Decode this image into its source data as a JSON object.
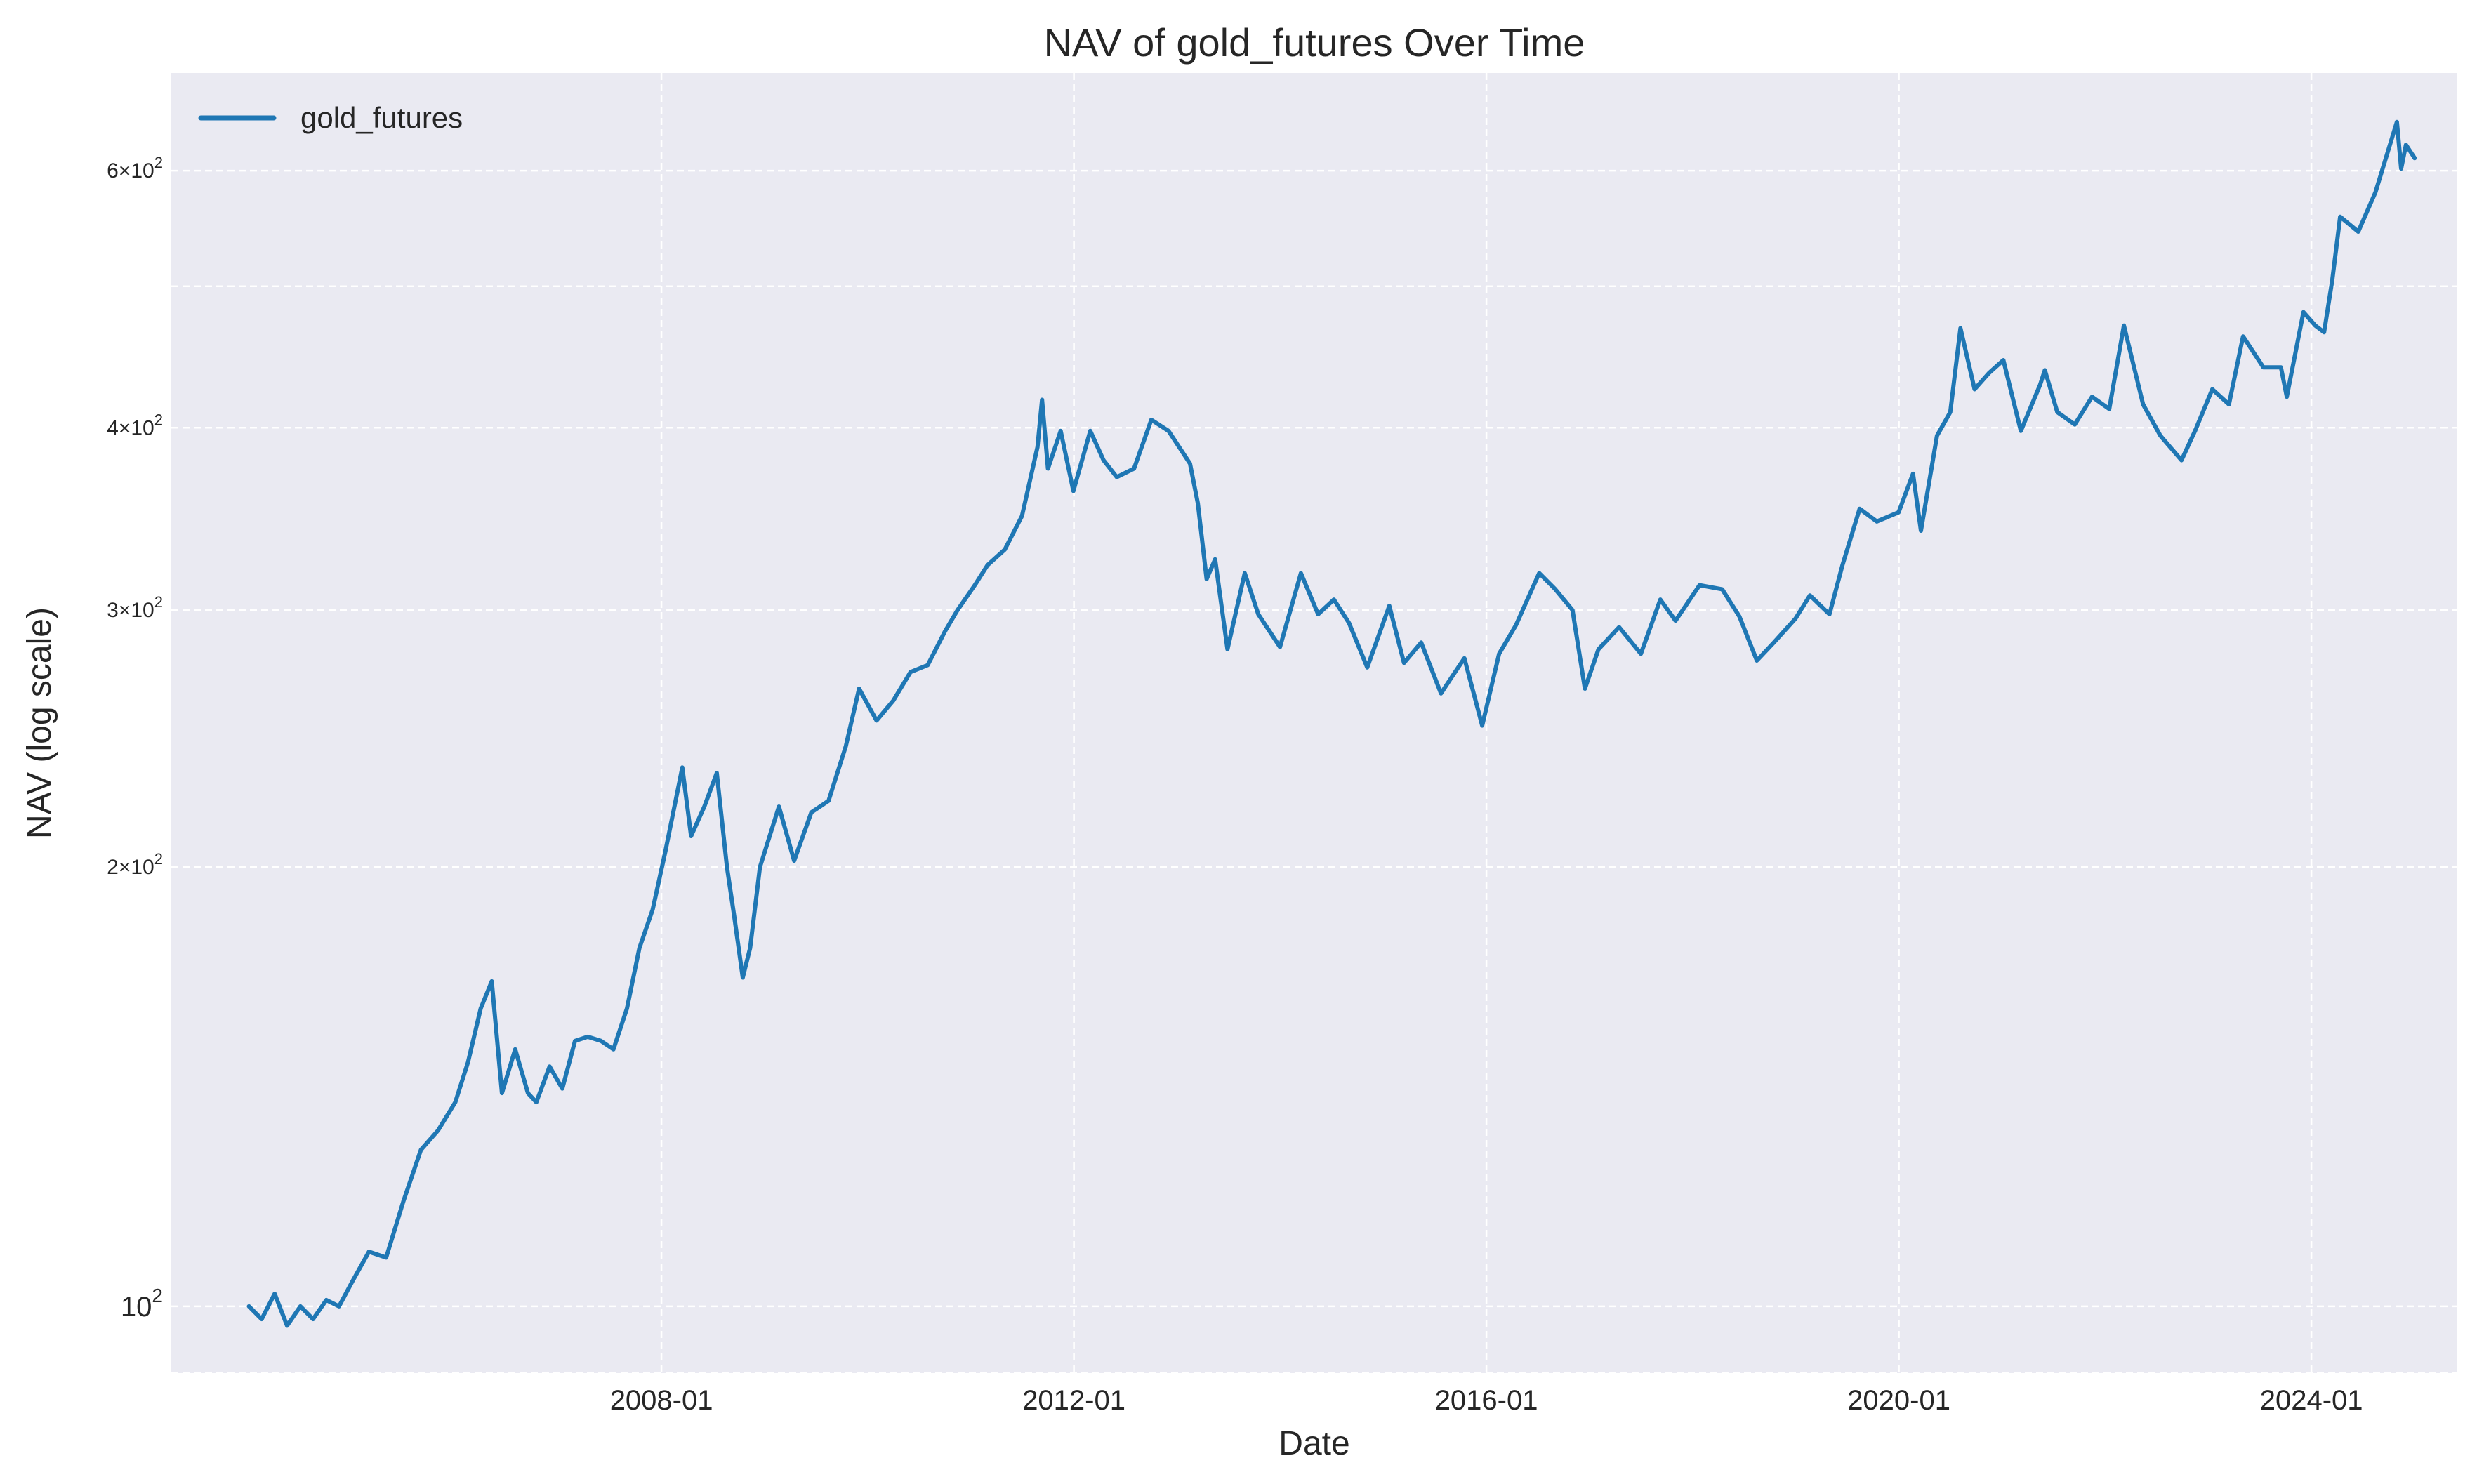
{
  "chart_data": {
    "type": "line",
    "title": "NAV of gold_futures Over Time",
    "xlabel": "Date",
    "ylabel": "NAV (log scale)",
    "yscale": "log",
    "ylim": [
      90,
      700
    ],
    "xlim": [
      "2003-04-01",
      "2025-06-01"
    ],
    "grid": true,
    "legend_position": "top-left",
    "x_ticks": [
      {
        "date": "2008-01-01",
        "label": "2008-01"
      },
      {
        "date": "2012-01-01",
        "label": "2012-01"
      },
      {
        "date": "2016-01-01",
        "label": "2016-01"
      },
      {
        "date": "2020-01-01",
        "label": "2020-01"
      },
      {
        "date": "2024-01-01",
        "label": "2024-01"
      }
    ],
    "y_ticks": [
      {
        "value": 100,
        "base": "10",
        "exp": "2",
        "coef": ""
      },
      {
        "value": 200,
        "base": "10",
        "exp": "2",
        "coef": "2×"
      },
      {
        "value": 300,
        "base": "10",
        "exp": "2",
        "coef": "3×"
      },
      {
        "value": 400,
        "base": "10",
        "exp": "2",
        "coef": "4×"
      },
      {
        "value": 600,
        "base": "10",
        "exp": "2",
        "coef": "6×"
      }
    ],
    "y_minor_grid": [
      500,
      90
    ],
    "series": [
      {
        "name": "gold_futures",
        "color": "#1f77b4",
        "points": [
          [
            "2004-01-01",
            100
          ],
          [
            "2004-02-15",
            98
          ],
          [
            "2004-04-01",
            102
          ],
          [
            "2004-05-15",
            97
          ],
          [
            "2004-07-01",
            100
          ],
          [
            "2004-08-15",
            98
          ],
          [
            "2004-10-01",
            101
          ],
          [
            "2004-11-15",
            100
          ],
          [
            "2005-01-01",
            104
          ],
          [
            "2005-03-01",
            109
          ],
          [
            "2005-05-01",
            108
          ],
          [
            "2005-07-01",
            118
          ],
          [
            "2005-09-01",
            128
          ],
          [
            "2005-11-01",
            132
          ],
          [
            "2006-01-01",
            138
          ],
          [
            "2006-02-15",
            147
          ],
          [
            "2006-04-01",
            160
          ],
          [
            "2006-05-10",
            167
          ],
          [
            "2006-06-15",
            140
          ],
          [
            "2006-08-01",
            150
          ],
          [
            "2006-09-15",
            140
          ],
          [
            "2006-10-15",
            138
          ],
          [
            "2006-12-01",
            146
          ],
          [
            "2007-01-15",
            141
          ],
          [
            "2007-03-01",
            152
          ],
          [
            "2007-04-15",
            153
          ],
          [
            "2007-06-01",
            152
          ],
          [
            "2007-07-15",
            150
          ],
          [
            "2007-09-01",
            160
          ],
          [
            "2007-10-15",
            176
          ],
          [
            "2007-12-01",
            187
          ],
          [
            "2008-01-15",
            205
          ],
          [
            "2008-03-15",
            234
          ],
          [
            "2008-04-15",
            210
          ],
          [
            "2008-06-01",
            220
          ],
          [
            "2008-07-15",
            232
          ],
          [
            "2008-08-20",
            200
          ],
          [
            "2008-09-15",
            185
          ],
          [
            "2008-10-15",
            168
          ],
          [
            "2008-11-10",
            176
          ],
          [
            "2008-12-15",
            200
          ],
          [
            "2009-02-20",
            220
          ],
          [
            "2009-04-15",
            202
          ],
          [
            "2009-06-15",
            218
          ],
          [
            "2009-08-15",
            222
          ],
          [
            "2009-10-15",
            242
          ],
          [
            "2009-12-01",
            265
          ],
          [
            "2010-02-01",
            252
          ],
          [
            "2010-04-01",
            260
          ],
          [
            "2010-06-01",
            272
          ],
          [
            "2010-08-01",
            275
          ],
          [
            "2010-10-01",
            290
          ],
          [
            "2010-11-15",
            300
          ],
          [
            "2011-01-15",
            312
          ],
          [
            "2011-03-01",
            322
          ],
          [
            "2011-05-01",
            330
          ],
          [
            "2011-07-01",
            348
          ],
          [
            "2011-08-25",
            388
          ],
          [
            "2011-09-10",
            418
          ],
          [
            "2011-10-01",
            375
          ],
          [
            "2011-11-15",
            398
          ],
          [
            "2011-12-30",
            362
          ],
          [
            "2012-02-28",
            398
          ],
          [
            "2012-04-15",
            380
          ],
          [
            "2012-06-01",
            370
          ],
          [
            "2012-08-01",
            375
          ],
          [
            "2012-10-01",
            405
          ],
          [
            "2012-12-01",
            398
          ],
          [
            "2013-02-15",
            378
          ],
          [
            "2013-03-15",
            355
          ],
          [
            "2013-04-15",
            315
          ],
          [
            "2013-05-15",
            325
          ],
          [
            "2013-06-28",
            282
          ],
          [
            "2013-08-28",
            318
          ],
          [
            "2013-10-15",
            298
          ],
          [
            "2013-12-31",
            283
          ],
          [
            "2014-03-15",
            318
          ],
          [
            "2014-05-15",
            298
          ],
          [
            "2014-07-10",
            305
          ],
          [
            "2014-09-01",
            294
          ],
          [
            "2014-11-05",
            274
          ],
          [
            "2015-01-22",
            302
          ],
          [
            "2015-03-15",
            276
          ],
          [
            "2015-05-15",
            285
          ],
          [
            "2015-07-24",
            263
          ],
          [
            "2015-09-01",
            270
          ],
          [
            "2015-10-15",
            278
          ],
          [
            "2015-12-17",
            250
          ],
          [
            "2016-02-15",
            280
          ],
          [
            "2016-04-15",
            293
          ],
          [
            "2016-07-06",
            318
          ],
          [
            "2016-09-01",
            310
          ],
          [
            "2016-11-01",
            300
          ],
          [
            "2016-12-15",
            265
          ],
          [
            "2017-02-01",
            282
          ],
          [
            "2017-04-15",
            292
          ],
          [
            "2017-07-01",
            280
          ],
          [
            "2017-09-08",
            305
          ],
          [
            "2017-11-01",
            295
          ],
          [
            "2018-01-25",
            312
          ],
          [
            "2018-04-15",
            310
          ],
          [
            "2018-06-15",
            297
          ],
          [
            "2018-08-16",
            277
          ],
          [
            "2018-10-15",
            285
          ],
          [
            "2018-12-31",
            296
          ],
          [
            "2019-02-20",
            307
          ],
          [
            "2019-04-30",
            298
          ],
          [
            "2019-06-15",
            322
          ],
          [
            "2019-08-15",
            352
          ],
          [
            "2019-10-15",
            345
          ],
          [
            "2019-12-31",
            350
          ],
          [
            "2020-02-20",
            372
          ],
          [
            "2020-03-19",
            340
          ],
          [
            "2020-05-15",
            395
          ],
          [
            "2020-07-01",
            410
          ],
          [
            "2020-08-06",
            468
          ],
          [
            "2020-09-25",
            425
          ],
          [
            "2020-11-15",
            436
          ],
          [
            "2021-01-05",
            445
          ],
          [
            "2021-03-08",
            398
          ],
          [
            "2021-05-15",
            428
          ],
          [
            "2021-06-01",
            438
          ],
          [
            "2021-07-15",
            410
          ],
          [
            "2021-09-15",
            402
          ],
          [
            "2021-11-15",
            420
          ],
          [
            "2022-01-15",
            412
          ],
          [
            "2022-03-08",
            470
          ],
          [
            "2022-05-15",
            415
          ],
          [
            "2022-07-15",
            395
          ],
          [
            "2022-09-28",
            380
          ],
          [
            "2022-11-15",
            398
          ],
          [
            "2023-01-15",
            425
          ],
          [
            "2023-03-15",
            415
          ],
          [
            "2023-05-04",
            462
          ],
          [
            "2023-07-15",
            440
          ],
          [
            "2023-09-15",
            440
          ],
          [
            "2023-10-06",
            420
          ],
          [
            "2023-12-04",
            480
          ],
          [
            "2024-01-15",
            470
          ],
          [
            "2024-02-15",
            465
          ],
          [
            "2024-03-15",
            505
          ],
          [
            "2024-04-12",
            558
          ],
          [
            "2024-06-15",
            545
          ],
          [
            "2024-08-15",
            580
          ],
          [
            "2024-10-30",
            648
          ],
          [
            "2024-11-14",
            602
          ],
          [
            "2024-12-01",
            625
          ],
          [
            "2025-01-01",
            612
          ]
        ]
      }
    ]
  }
}
